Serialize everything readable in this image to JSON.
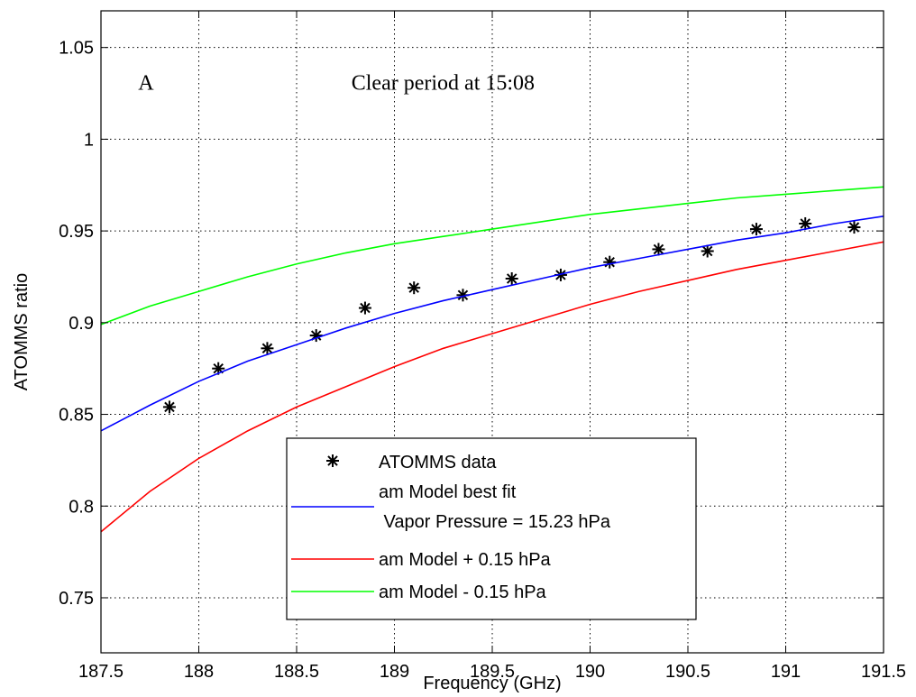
{
  "chart_data": {
    "type": "line",
    "title": "",
    "xlabel": "Frequency (GHz)",
    "ylabel": "ATOMMS ratio",
    "xlim": [
      187.5,
      191.5
    ],
    "ylim": [
      0.72,
      1.07
    ],
    "x_ticks": [
      187.5,
      188,
      188.5,
      189,
      189.5,
      190,
      190.5,
      191,
      191.5
    ],
    "x_tick_labels": [
      "187.5",
      "188",
      "188.5",
      "189",
      "189.5",
      "190",
      "190.5",
      "191",
      "191.5"
    ],
    "y_ticks": [
      0.75,
      0.8,
      0.85,
      0.9,
      0.95,
      1,
      1.05
    ],
    "y_tick_labels": [
      "0.75",
      "0.8",
      "0.85",
      "0.9",
      "0.95",
      "1",
      "1.05"
    ],
    "grid": true,
    "legend_position": "bottom-center",
    "annotations": [
      {
        "text": "A",
        "x": 187.69,
        "y": 1.027
      },
      {
        "text": "Clear period at 15:08",
        "x": 188.78,
        "y": 1.027
      }
    ],
    "series": [
      {
        "name": "ATOMMS data",
        "kind": "scatter",
        "marker": "asterisk",
        "color": "#000000",
        "x": [
          187.85,
          188.1,
          188.35,
          188.6,
          188.85,
          189.1,
          189.35,
          189.6,
          189.85,
          190.1,
          190.35,
          190.6,
          190.85,
          191.1,
          191.35
        ],
        "y": [
          0.854,
          0.875,
          0.886,
          0.893,
          0.908,
          0.919,
          0.915,
          0.924,
          0.926,
          0.933,
          0.94,
          0.939,
          0.951,
          0.954,
          0.952
        ]
      },
      {
        "name": "am Model best fit\n Vapor Pressure = 15.23 hPa",
        "kind": "line",
        "color": "#0000ff",
        "x": [
          187.5,
          187.75,
          188.0,
          188.25,
          188.5,
          188.75,
          189.0,
          189.25,
          189.5,
          189.75,
          190.0,
          190.25,
          190.5,
          190.75,
          191.0,
          191.25,
          191.5
        ],
        "y": [
          0.841,
          0.855,
          0.868,
          0.879,
          0.888,
          0.897,
          0.905,
          0.912,
          0.918,
          0.924,
          0.93,
          0.935,
          0.94,
          0.945,
          0.949,
          0.954,
          0.958
        ]
      },
      {
        "name": "am Model + 0.15 hPa",
        "kind": "line",
        "color": "#ff0000",
        "x": [
          187.5,
          187.75,
          188.0,
          188.25,
          188.5,
          188.75,
          189.0,
          189.25,
          189.5,
          189.75,
          190.0,
          190.25,
          190.5,
          190.75,
          191.0,
          191.25,
          191.5
        ],
        "y": [
          0.786,
          0.808,
          0.826,
          0.841,
          0.854,
          0.865,
          0.876,
          0.886,
          0.894,
          0.902,
          0.91,
          0.917,
          0.923,
          0.929,
          0.934,
          0.939,
          0.944
        ]
      },
      {
        "name": "am Model - 0.15 hPa",
        "kind": "line",
        "color": "#00ff00",
        "x": [
          187.5,
          187.75,
          188.0,
          188.25,
          188.5,
          188.75,
          189.0,
          189.25,
          189.5,
          189.75,
          190.0,
          190.25,
          190.5,
          190.75,
          191.0,
          191.25,
          191.5
        ],
        "y": [
          0.899,
          0.909,
          0.917,
          0.925,
          0.932,
          0.938,
          0.943,
          0.947,
          0.951,
          0.955,
          0.959,
          0.962,
          0.965,
          0.968,
          0.97,
          0.972,
          0.974
        ]
      }
    ],
    "legend": {
      "items": [
        {
          "label_lines": [
            "ATOMMS data"
          ],
          "marker": "asterisk",
          "color": "#000000"
        },
        {
          "label_lines": [
            "am Model best fit",
            " Vapor Pressure = 15.23 hPa"
          ],
          "marker": "line",
          "color": "#0000ff"
        },
        {
          "label_lines": [
            "am Model + 0.15 hPa"
          ],
          "marker": "line",
          "color": "#ff0000"
        },
        {
          "label_lines": [
            "am Model - 0.15 hPa"
          ],
          "marker": "line",
          "color": "#00ff00"
        }
      ]
    }
  }
}
